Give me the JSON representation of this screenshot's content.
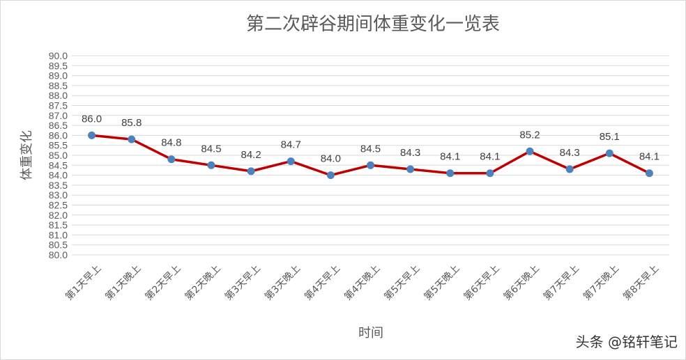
{
  "chart_data": {
    "type": "line",
    "title": "第二次辟谷期间体重变化一览表",
    "xlabel": "时间",
    "ylabel": "体重变化",
    "categories": [
      "第1天早上",
      "第1天晚上",
      "第2天早上",
      "第2天晚上",
      "第3天早上",
      "第3天晚上",
      "第4天早上",
      "第4天晚上",
      "第5天早上",
      "第5天晚上",
      "第6天早上",
      "第6天晚上",
      "第7天早上",
      "第7天晚上",
      "第8天早上"
    ],
    "series": [
      {
        "values": [
          86.0,
          85.8,
          84.8,
          84.5,
          84.2,
          84.7,
          84.0,
          84.5,
          84.3,
          84.1,
          84.1,
          85.2,
          84.3,
          85.1,
          84.1
        ]
      }
    ],
    "data_labels": [
      "86.0",
      "85.8",
      "84.8",
      "84.5",
      "84.2",
      "84.7",
      "84.0",
      "84.5",
      "84.3",
      "84.1",
      "84.1",
      "85.2",
      "84.3",
      "85.1",
      "84.1"
    ],
    "yticks": [
      "80.0",
      "80.5",
      "81.0",
      "81.5",
      "82.0",
      "82.5",
      "83.0",
      "83.5",
      "84.0",
      "84.5",
      "85.0",
      "85.5",
      "86.0",
      "86.5",
      "87.0",
      "87.5",
      "88.0",
      "88.5",
      "89.0",
      "89.5",
      "90.0"
    ],
    "ylim": [
      80,
      90
    ],
    "ystep": 0.5,
    "grid": true,
    "legend": "none",
    "line_color": "#c00000",
    "marker_color": "#4f81bd"
  },
  "watermark": "头条 @铭轩笔记"
}
